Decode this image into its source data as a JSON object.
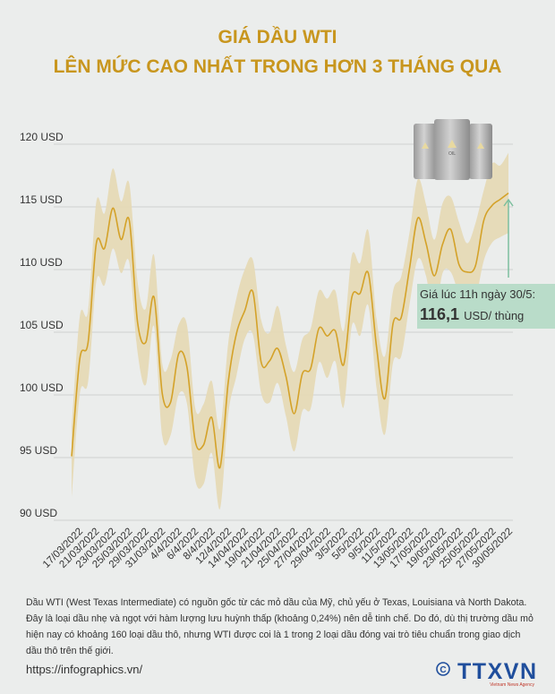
{
  "header": {
    "title_line1": "GIÁ DẦU WTI",
    "title_line2": "LÊN MỨC CAO NHẤT TRONG HƠN 3 THÁNG QUA"
  },
  "callout": {
    "label": "Giá lúc 11h ngày 30/5:",
    "value": "116,1",
    "unit": "USD/ thùng",
    "color": "#b9dcc9",
    "arrow_color": "#7cbf9e"
  },
  "barrel_label": "OIL",
  "chart_data": {
    "type": "line",
    "title": "GIÁ DẦU WTI LÊN MỨC CAO NHẤT TRONG HƠN 3 THÁNG QUA",
    "xlabel": "",
    "ylabel": "USD",
    "ylim": [
      90,
      120
    ],
    "yticks": [
      120,
      115,
      110,
      105,
      100,
      95,
      90
    ],
    "ytick_labels": [
      "120 USD",
      "115 USD",
      "110 USD",
      "105 USD",
      "100 USD",
      "95 USD",
      "90 USD"
    ],
    "grid": true,
    "x_tick_labels": [
      "17/03/2022",
      "21/03/2022",
      "23/03/2022",
      "25/03/2022",
      "29/03/2022",
      "31/03/2022",
      "4/4/2022",
      "6/4/2022",
      "8/4/2022",
      "12/4/2022",
      "14/04/2022",
      "19/04/2022",
      "21/04/2022",
      "25/04/2022",
      "27/04/2022",
      "29/04/2022",
      "3/5/2022",
      "5/5/2022",
      "9/5/2022",
      "11/5/2022",
      "13/05/2022",
      "17/05/2022",
      "19/05/2022",
      "23/05/2022",
      "25/05/2022",
      "27/05/2022",
      "30/05/2022"
    ],
    "series": [
      {
        "name": "WTI",
        "color": "#d4a229",
        "band_color": "#e6d8b4",
        "values": [
          95.1,
          102.9,
          104.2,
          112.1,
          111.7,
          114.9,
          112.4,
          113.9,
          105.8,
          104.2,
          107.8,
          100.1,
          99.4,
          103.3,
          102.2,
          96.3,
          96.0,
          98.2,
          94.2,
          101.0,
          104.9,
          106.7,
          108.2,
          102.6,
          102.7,
          103.7,
          101.5,
          98.5,
          101.7,
          102.1,
          105.3,
          104.7,
          105.1,
          102.4,
          107.8,
          108.1,
          109.7,
          103.8,
          99.7,
          105.7,
          106.2,
          110.1,
          114.1,
          112.1,
          109.5,
          112.0,
          113.2,
          110.4,
          109.8,
          110.3,
          113.9,
          115.1,
          115.6,
          116.1
        ]
      }
    ],
    "annotation": "Giá lúc 11h ngày 30/5: 116,1 USD/ thùng"
  },
  "footer": {
    "note": "Dầu WTI (West Texas Intermediate) có nguồn gốc từ các mỏ dầu của Mỹ, chủ yếu ở Texas, Louisiana và North Dakota. Đây là loại dầu nhẹ và ngọt với hàm lượng lưu huỳnh thấp (khoảng 0,24%) nên dễ tinh chế. Do đó, dù thị trường dầu mỏ hiện nay có khoảng 160 loại dầu thô, nhưng WTI được coi là 1 trong 2 loại dầu đóng vai trò tiêu chuẩn trong giao dịch dầu thô trên thế giới.",
    "url": "https://infographics.vn/",
    "logo_text": "TTXVN",
    "logo_sub": "Vietnam News Agency",
    "copyright": "©"
  }
}
